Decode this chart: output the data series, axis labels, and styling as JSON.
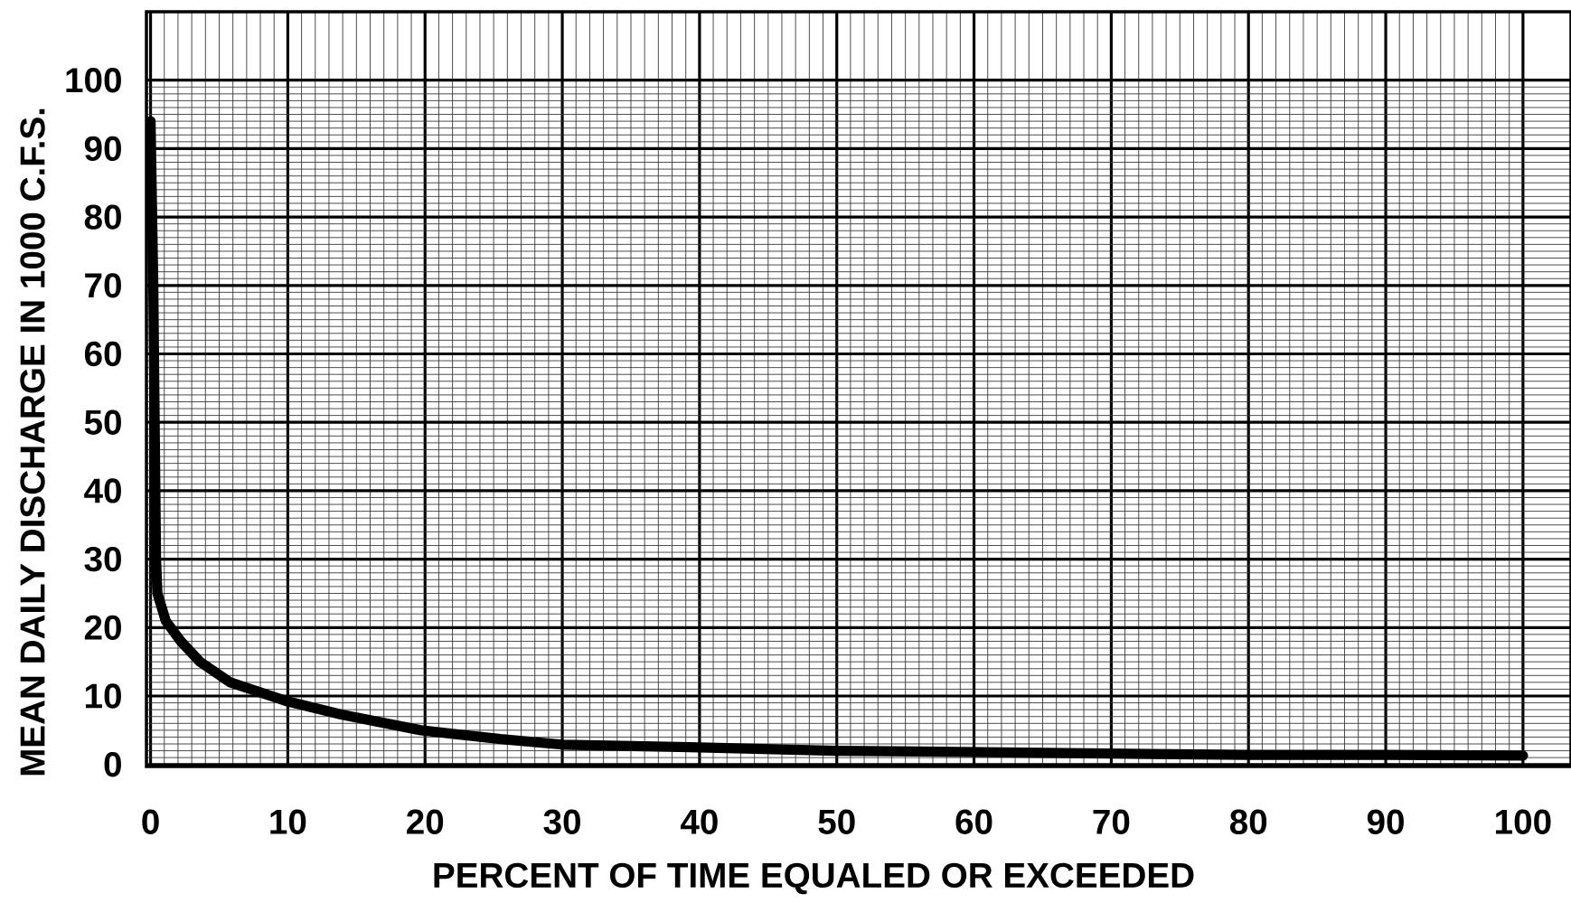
{
  "chart_data": {
    "type": "line",
    "xlabel": "PERCENT OF TIME EQUALED OR EXCEEDED",
    "ylabel": "MEAN DAILY DISCHARGE IN 1000 C.F.S.",
    "x": [
      0,
      0.2,
      0.4,
      0.5,
      1.1,
      2.2,
      3.6,
      5.8,
      10,
      13.9,
      19.7,
      25.5,
      30,
      40,
      50,
      60,
      70,
      80,
      90,
      100
    ],
    "series": [
      {
        "color": "#000000",
        "values": [
          94,
          70,
          30,
          25,
          21,
          18,
          15,
          12,
          9.2,
          7.3,
          5,
          3.7,
          2.9,
          2.5,
          2.0,
          1.8,
          1.6,
          1.4,
          1.4,
          1.3
        ]
      }
    ],
    "xlim": [
      -0.3,
      103.5
    ],
    "ylim": [
      -0.3,
      110
    ],
    "xticks": [
      0,
      10,
      20,
      30,
      40,
      50,
      60,
      70,
      80,
      90,
      100
    ],
    "yticks": [
      0,
      10,
      20,
      30,
      40,
      50,
      60,
      70,
      80,
      90,
      100
    ],
    "grid": true,
    "line_style": "solid"
  }
}
